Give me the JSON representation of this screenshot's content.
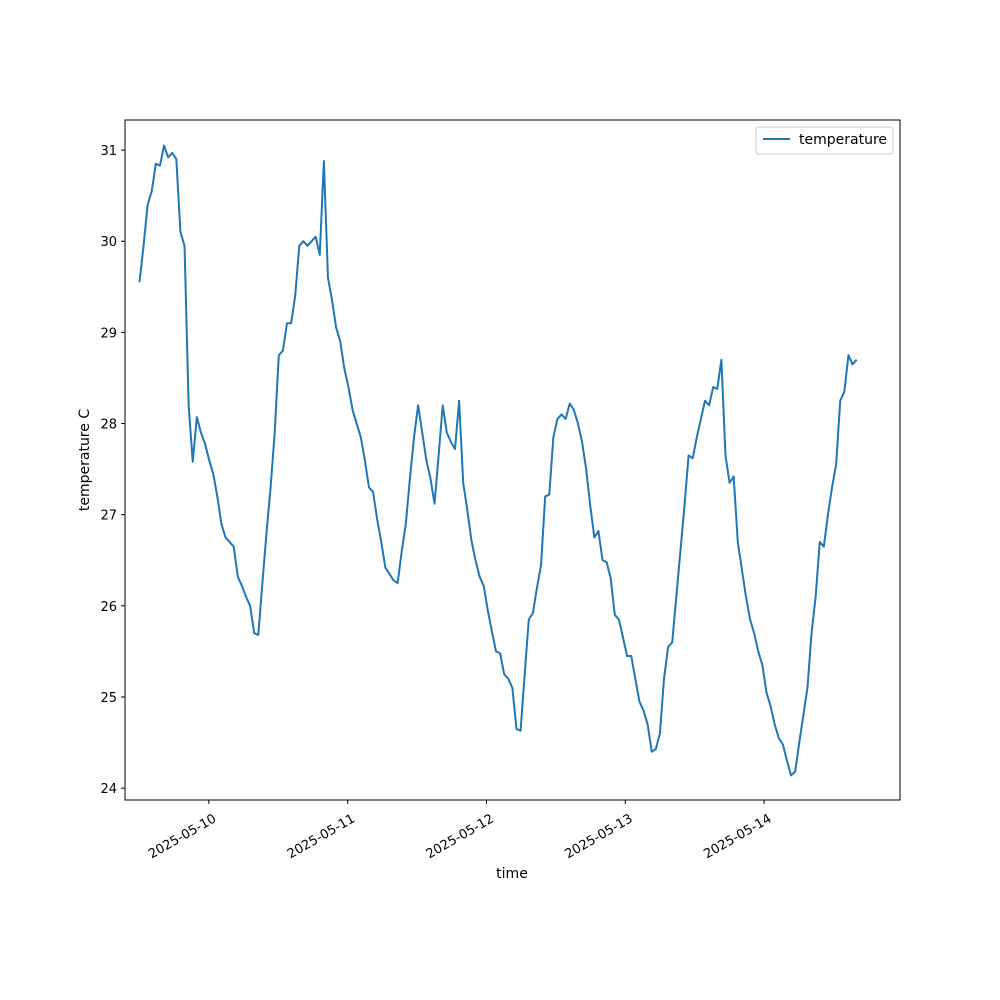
{
  "chart_data": {
    "type": "line",
    "title": "",
    "xlabel": "time",
    "ylabel": "temperature C",
    "x_start": "2025-05-09T12:00",
    "x_end": "2025-05-14T16:00",
    "xlim": [
      "2025-05-09T09:30",
      "2025-05-14T23:30"
    ],
    "ylim": [
      23.87,
      31.33
    ],
    "x_ticks": [
      "2025-05-10",
      "2025-05-11",
      "2025-05-12",
      "2025-05-13",
      "2025-05-14"
    ],
    "y_ticks": [
      24,
      25,
      26,
      27,
      28,
      29,
      30,
      31
    ],
    "grid": false,
    "legend": "top-right",
    "series": [
      {
        "name": "temperature",
        "color": "#1f77b4",
        "values": [
          29.55,
          29.95,
          30.4,
          30.55,
          30.85,
          30.83,
          31.05,
          30.92,
          30.97,
          30.9,
          30.1,
          29.95,
          28.2,
          27.58,
          28.07,
          27.9,
          27.78,
          27.6,
          27.45,
          27.2,
          26.9,
          26.75,
          26.7,
          26.65,
          26.32,
          26.22,
          26.1,
          26.0,
          25.7,
          25.68,
          26.25,
          26.8,
          27.3,
          27.9,
          28.75,
          28.8,
          29.1,
          29.1,
          29.4,
          29.95,
          30.0,
          29.95,
          30.0,
          30.05,
          29.85,
          30.88,
          29.6,
          29.35,
          29.05,
          28.9,
          28.6,
          28.4,
          28.15,
          28.0,
          27.85,
          27.6,
          27.3,
          27.25,
          26.95,
          26.7,
          26.42,
          26.35,
          26.28,
          26.25,
          26.6,
          26.9,
          27.4,
          27.85,
          28.2,
          27.9,
          27.6,
          27.4,
          27.12,
          27.65,
          28.2,
          27.9,
          27.8,
          27.72,
          28.25,
          27.35,
          27.05,
          26.72,
          26.5,
          26.32,
          26.22,
          25.95,
          25.72,
          25.5,
          25.48,
          25.25,
          25.2,
          25.1,
          24.65,
          24.63,
          25.25,
          25.85,
          25.92,
          26.2,
          26.45,
          27.2,
          27.22,
          27.85,
          28.05,
          28.1,
          28.05,
          28.22,
          28.15,
          28.0,
          27.8,
          27.5,
          27.1,
          26.75,
          26.82,
          26.5,
          26.48,
          26.3,
          25.9,
          25.85,
          25.65,
          25.45,
          25.45,
          25.2,
          24.95,
          24.85,
          24.7,
          24.4,
          24.43,
          24.6,
          25.2,
          25.55,
          25.6,
          26.1,
          26.6,
          27.1,
          27.65,
          27.62,
          27.85,
          28.05,
          28.25,
          28.2,
          28.4,
          28.38,
          28.7,
          27.65,
          27.35,
          27.42,
          26.7,
          26.4,
          26.1,
          25.85,
          25.7,
          25.5,
          25.35,
          25.05,
          24.9,
          24.7,
          24.55,
          24.48,
          24.3,
          24.14,
          24.18,
          24.5,
          24.8,
          25.1,
          25.7,
          26.1,
          26.7,
          26.65,
          27.0,
          27.3,
          27.55,
          28.25,
          28.35,
          28.75,
          28.65,
          28.7
        ]
      }
    ]
  }
}
